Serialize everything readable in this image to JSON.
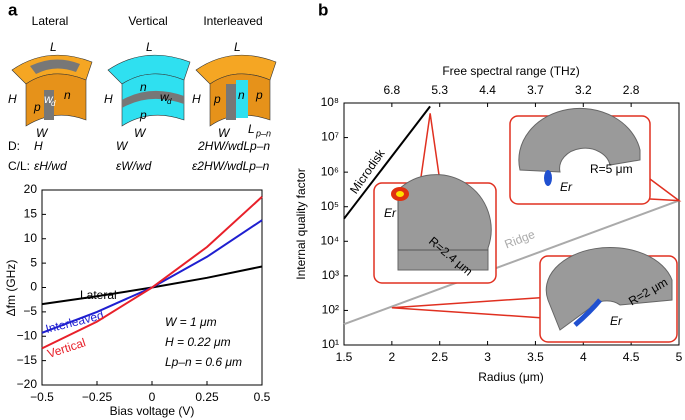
{
  "panel_labels": [
    "a",
    "b"
  ],
  "schematics": [
    {
      "title": "Lateral",
      "labels": [
        "L",
        "H",
        "W",
        "p",
        "n",
        "w",
        "d"
      ]
    },
    {
      "title": "Vertical",
      "labels": [
        "L",
        "H",
        "W",
        "p",
        "n",
        "w",
        "d"
      ]
    },
    {
      "title": "Interleaved",
      "labels": [
        "L",
        "H",
        "W",
        "p",
        "n",
        "p",
        "L",
        "p–n"
      ]
    }
  ],
  "formulas": {
    "rows": [
      {
        "name": "D:",
        "cells": [
          "H",
          "W",
          "2HW/wdLp–n"
        ]
      },
      {
        "name": "C/L:",
        "cells": [
          "εH/wd",
          "εW/wd",
          "ε2HW/wdLp–n"
        ]
      }
    ]
  },
  "chart_data": [
    {
      "type": "line",
      "x_label": "Bias voltage (V)",
      "y_label": "Δfm (GHz)",
      "x": [
        -0.5,
        -0.25,
        0,
        0.25,
        0.5
      ],
      "xlim": [
        -0.5,
        0.5
      ],
      "xticks": [
        {
          "value": -0.5,
          "label": "−0.5"
        },
        {
          "value": -0.25,
          "label": "−0.25"
        },
        0,
        0.25,
        0.5
      ],
      "ylim": [
        -20,
        20
      ],
      "yticks": [
        {
          "value": -20,
          "label": "−20"
        },
        {
          "value": -15,
          "label": "−15"
        },
        {
          "value": -10,
          "label": "−10"
        },
        {
          "value": -5,
          "label": "−5"
        },
        0,
        5,
        10,
        15,
        20
      ],
      "series": [
        {
          "name": "Lateral",
          "color": "#000000",
          "values": [
            -3.4,
            -1.8,
            0,
            2.0,
            4.3
          ]
        },
        {
          "name": "Interleaved",
          "color": "#1f1fd0",
          "values": [
            -9.3,
            -5.0,
            0,
            6.3,
            13.8
          ]
        },
        {
          "name": "Vertical",
          "color": "#e8202a",
          "values": [
            -12.5,
            -7.0,
            0,
            8.3,
            18.6
          ]
        }
      ],
      "annotations": [
        "W = 1 μm",
        "H = 0.22 μm",
        "Lp–n = 0.6 μm"
      ]
    },
    {
      "type": "line",
      "x_label": "Radius (μm)",
      "y_label": "Internal quality factor",
      "x2_label": "Free spectral range (THz)",
      "xlim": [
        1.5,
        5
      ],
      "xticks": [
        1.5,
        2,
        2.5,
        3,
        3.5,
        4,
        4.5,
        5
      ],
      "x2ticks": [
        {
          "value": 2,
          "label": "6.8"
        },
        {
          "value": 2.5,
          "label": "5.3"
        },
        {
          "value": 3,
          "label": "4.4"
        },
        {
          "value": 3.5,
          "label": "3.7"
        },
        {
          "value": 4,
          "label": "3.2"
        },
        {
          "value": 4.5,
          "label": "2.8"
        }
      ],
      "yscale": "log",
      "ylim": [
        10,
        100000000
      ],
      "yticks": [
        {
          "value": 10,
          "label": "10¹"
        },
        {
          "value": 100,
          "label": "10²"
        },
        {
          "value": 1000,
          "label": "10³"
        },
        {
          "value": 10000,
          "label": "10⁴"
        },
        {
          "value": 100000,
          "label": "10⁵"
        },
        {
          "value": 1000000,
          "label": "10⁶"
        },
        {
          "value": 10000000,
          "label": "10⁷"
        },
        {
          "value": 100000000,
          "label": "10⁸"
        }
      ],
      "series": [
        {
          "name": "Microdisk",
          "color": "#000000",
          "x": [
            1.5,
            2.4
          ],
          "values": [
            45000,
            80000000
          ]
        },
        {
          "name": "Ridge",
          "color": "#aaaaaa",
          "x": [
            1.5,
            5
          ],
          "values": [
            40,
            150000
          ]
        }
      ],
      "callouts": [
        {
          "x": 2.4,
          "y": 50000000,
          "labels": [
            "Er",
            "R=2.4 μm"
          ]
        },
        {
          "x": 5,
          "y": 150000,
          "labels": [
            "Er",
            "R=5 μm"
          ]
        },
        {
          "x": 2,
          "y": 120,
          "labels": [
            "Er",
            "R=2 μm"
          ]
        }
      ]
    }
  ]
}
